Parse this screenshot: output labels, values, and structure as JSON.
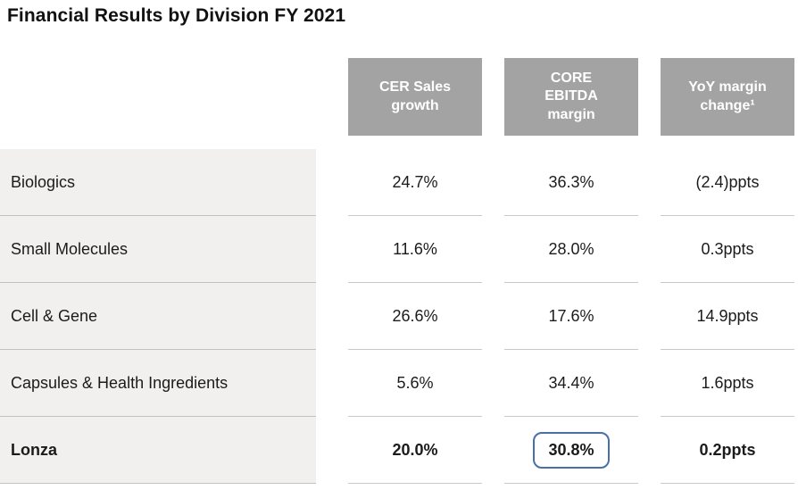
{
  "title": "Financial Results by Division FY 2021",
  "colors": {
    "header_bg": "#a3a3a3",
    "header_text": "#ffffff",
    "label_row_bg": "#f1f0ee",
    "label_divider": "#c2c2c2",
    "cell_underline": "#c9c9c9",
    "highlight_border": "#4a6fa8",
    "text": "#1b1b1b"
  },
  "table": {
    "columns": [
      "CER Sales\ngrowth",
      "CORE\nEBITDA\nmargin",
      "YoY margin\nchange¹"
    ],
    "rows": [
      {
        "label": "Biologics",
        "cer_sales_growth": "24.7%",
        "core_ebitda_margin": "36.3%",
        "yoy_margin_change": "(2.4)ppts"
      },
      {
        "label": "Small Molecules",
        "cer_sales_growth": "11.6%",
        "core_ebitda_margin": "28.0%",
        "yoy_margin_change": "0.3ppts"
      },
      {
        "label": "Cell & Gene",
        "cer_sales_growth": "26.6%",
        "core_ebitda_margin": "17.6%",
        "yoy_margin_change": "14.9ppts"
      },
      {
        "label": "Capsules & Health Ingredients",
        "cer_sales_growth": "5.6%",
        "core_ebitda_margin": "34.4%",
        "yoy_margin_change": "1.6ppts"
      },
      {
        "label": "Lonza",
        "cer_sales_growth": "20.0%",
        "core_ebitda_margin": "30.8%",
        "yoy_margin_change": "0.2ppts",
        "emphasis": true,
        "highlighted_value": "core_ebitda_margin"
      }
    ]
  }
}
